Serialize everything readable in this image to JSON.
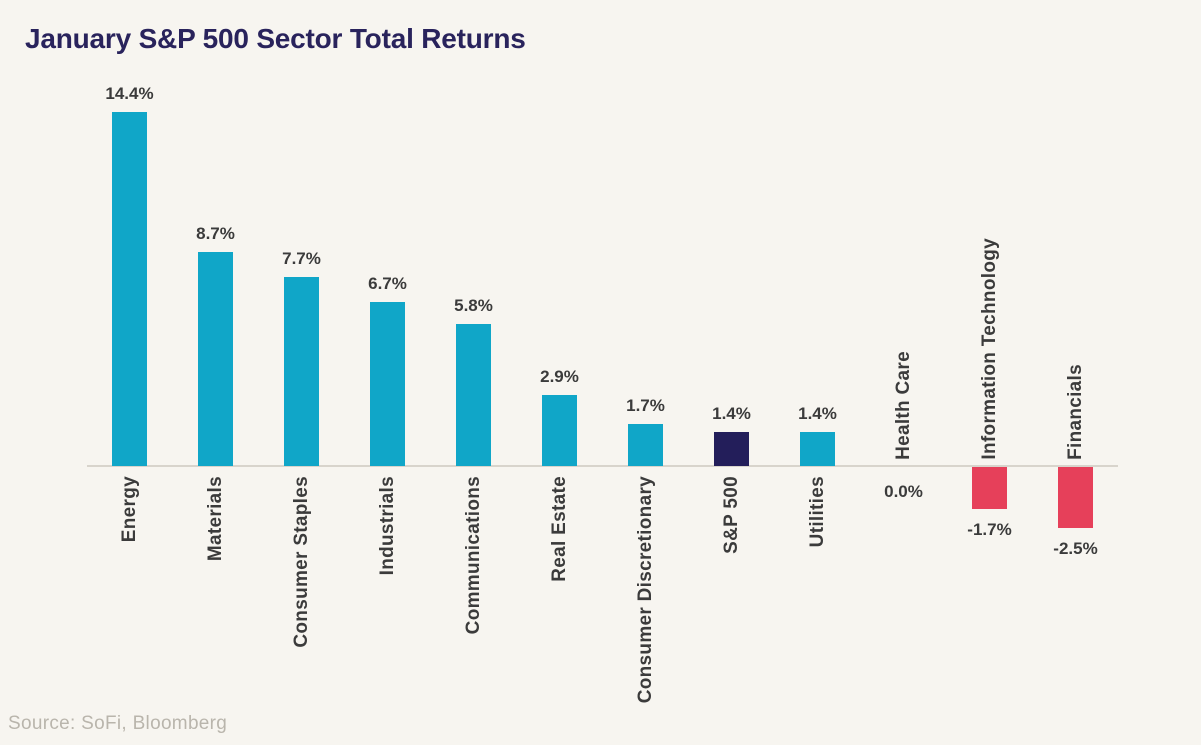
{
  "chart": {
    "title": "January S&P 500 Sector Total Returns",
    "source": "Source: SoFi, Bloomberg"
  },
  "chart_data": {
    "type": "bar",
    "title": "January S&P 500 Sector Total Returns",
    "categories": [
      "Energy",
      "Materials",
      "Consumer Staples",
      "Industrials",
      "Communications",
      "Real Estate",
      "Consumer Discretionary",
      "S&P 500",
      "Utilities",
      "Health Care",
      "Information Technology",
      "Financials"
    ],
    "values": [
      14.4,
      8.7,
      7.7,
      6.7,
      5.8,
      2.9,
      1.7,
      1.4,
      1.4,
      0.0,
      -1.7,
      -2.5
    ],
    "value_labels": [
      "14.4%",
      "8.7%",
      "7.7%",
      "6.7%",
      "5.8%",
      "2.9%",
      "1.7%",
      "1.4%",
      "1.4%",
      "0.0%",
      "-1.7%",
      "-2.5%"
    ],
    "bar_colors": [
      "#10A6C8",
      "#10A6C8",
      "#10A6C8",
      "#10A6C8",
      "#10A6C8",
      "#10A6C8",
      "#10A6C8",
      "#231E5A",
      "#10A6C8",
      null,
      "#E6405A",
      "#E6405A"
    ],
    "xlabel": "",
    "ylabel": "",
    "ylim": [
      -3.5,
      15.5
    ],
    "grid": false,
    "legend": null,
    "source": "Source: SoFi, Bloomberg",
    "colors": {
      "positive": "#10A6C8",
      "benchmark": "#231E5A",
      "negative": "#E6405A",
      "axis_line": "#D8D4CC",
      "title_text": "#29235C",
      "label_text": "#3B3B3B",
      "source_text": "#B9B5AC",
      "background": "#F7F5F0"
    }
  }
}
